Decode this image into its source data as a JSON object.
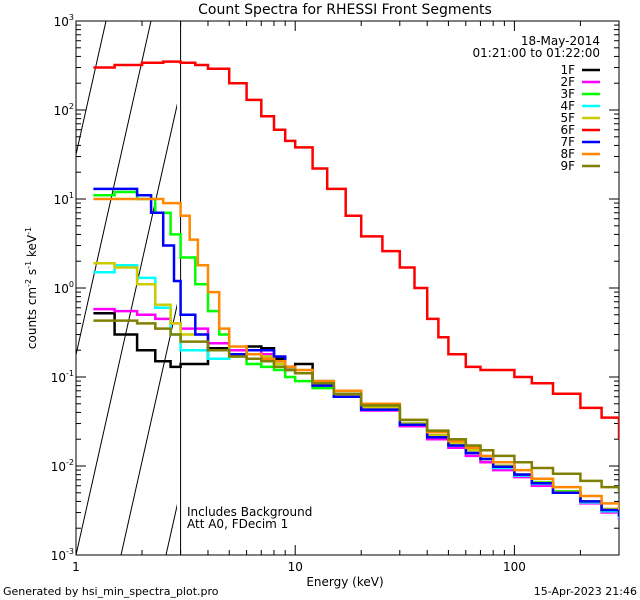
{
  "chart_data": {
    "type": "line",
    "title": "Count Spectra for RHESSI Front Segments",
    "xlabel": "Energy (keV)",
    "ylabel": "counts cm",
    "ylabel_parts": {
      "base": "counts cm",
      "sup1": "-2",
      "mid1": " s",
      "sup2": "-1",
      "mid2": " keV",
      "sup3": "-1"
    },
    "x_scale": "log",
    "y_scale": "log",
    "xlim": [
      1,
      300
    ],
    "ylim": [
      0.001,
      1000
    ],
    "x_ticks": [
      {
        "value": 1,
        "label": "1"
      },
      {
        "value": 10,
        "label": "10"
      },
      {
        "value": 100,
        "label": "100"
      }
    ],
    "y_ticks": [
      {
        "value": 0.001,
        "base": "10",
        "exp": "-3"
      },
      {
        "value": 0.01,
        "base": "10",
        "exp": "-2"
      },
      {
        "value": 0.1,
        "base": "10",
        "exp": "-1"
      },
      {
        "value": 1,
        "base": "10",
        "exp": "0"
      },
      {
        "value": 10,
        "base": "10",
        "exp": "1"
      },
      {
        "value": 100,
        "base": "10",
        "exp": "2"
      },
      {
        "value": 1000,
        "base": "10",
        "exp": "3"
      }
    ],
    "date": "18-May-2014",
    "time_range": "01:21:00 to 01:22:00",
    "threshold_keV": 3,
    "annotations": [
      "Includes Background",
      "Att A0, FDecim 1"
    ],
    "footer_left": "Generated by hsi_min_spectra_plot.pro",
    "footer_right": "15-Apr-2023 21:46",
    "series": [
      {
        "name": "1F",
        "color": "#000000",
        "x": [
          1.2,
          1.5,
          1.9,
          2.3,
          2.7,
          3,
          4,
          5,
          6,
          7,
          8,
          9,
          10,
          12,
          15,
          20,
          30,
          40,
          50,
          60,
          70,
          80,
          100,
          120,
          150,
          200,
          250,
          300
        ],
        "y": [
          0.52,
          0.3,
          0.2,
          0.15,
          0.13,
          0.14,
          0.21,
          0.2,
          0.22,
          0.21,
          0.16,
          0.13,
          0.14,
          0.09,
          0.065,
          0.045,
          0.03,
          0.022,
          0.018,
          0.015,
          0.012,
          0.01,
          0.008,
          0.0065,
          0.005,
          0.004,
          0.0032,
          0.0028
        ]
      },
      {
        "name": "2F",
        "color": "#ff00ff",
        "x": [
          1.2,
          1.5,
          1.9,
          2.3,
          2.7,
          3,
          4,
          5,
          6,
          7,
          8,
          9,
          10,
          12,
          15,
          20,
          30,
          40,
          50,
          60,
          70,
          80,
          100,
          120,
          150,
          200,
          250,
          300
        ],
        "y": [
          0.58,
          0.55,
          0.5,
          0.45,
          0.4,
          0.35,
          0.24,
          0.2,
          0.2,
          0.18,
          0.15,
          0.12,
          0.11,
          0.08,
          0.06,
          0.042,
          0.028,
          0.02,
          0.016,
          0.013,
          0.011,
          0.009,
          0.0075,
          0.006,
          0.005,
          0.0038,
          0.003,
          0.0025
        ]
      },
      {
        "name": "3F",
        "color": "#00ff00",
        "x": [
          1.2,
          1.5,
          1.9,
          2.3,
          2.7,
          3,
          3.5,
          4,
          4.5,
          5,
          6,
          7,
          8,
          9,
          10,
          12,
          15,
          20,
          30,
          40,
          50,
          60,
          70,
          80,
          100,
          120,
          150,
          200,
          250,
          300
        ],
        "y": [
          11,
          12,
          10,
          7,
          4,
          2.2,
          1.1,
          0.55,
          0.3,
          0.18,
          0.14,
          0.13,
          0.12,
          0.1,
          0.09,
          0.075,
          0.06,
          0.045,
          0.03,
          0.022,
          0.018,
          0.015,
          0.012,
          0.01,
          0.008,
          0.0066,
          0.0052,
          0.004,
          0.0032,
          0.0028
        ]
      },
      {
        "name": "4F",
        "color": "#00ffff",
        "x": [
          1.2,
          1.5,
          1.9,
          2.3,
          2.7,
          3,
          4,
          5,
          6,
          7,
          8,
          9,
          10,
          12,
          15,
          20,
          30,
          40,
          50,
          60,
          70,
          80,
          100,
          120,
          150,
          200,
          250,
          300
        ],
        "y": [
          1.5,
          1.8,
          1.3,
          0.6,
          0.3,
          0.2,
          0.16,
          0.17,
          0.18,
          0.17,
          0.14,
          0.12,
          0.11,
          0.08,
          0.06,
          0.043,
          0.03,
          0.021,
          0.017,
          0.014,
          0.012,
          0.0095,
          0.0078,
          0.0063,
          0.005,
          0.0039,
          0.0031,
          0.0026
        ]
      },
      {
        "name": "5F",
        "color": "#cccc00",
        "x": [
          1.2,
          1.5,
          1.9,
          2.3,
          2.7,
          3,
          4,
          5,
          6,
          7,
          8,
          9,
          10,
          12,
          15,
          20,
          30,
          40,
          50,
          60,
          70,
          80,
          100,
          120,
          150,
          200,
          250,
          300
        ],
        "y": [
          1.9,
          1.7,
          1.1,
          0.65,
          0.4,
          0.3,
          0.2,
          0.17,
          0.18,
          0.17,
          0.14,
          0.12,
          0.11,
          0.08,
          0.062,
          0.045,
          0.03,
          0.022,
          0.018,
          0.015,
          0.012,
          0.01,
          0.008,
          0.0065,
          0.0051,
          0.004,
          0.0033,
          0.0029
        ]
      },
      {
        "name": "6F",
        "color": "#ff0000",
        "x": [
          1.2,
          1.5,
          2,
          2.5,
          3,
          3.5,
          4,
          5,
          6,
          7,
          8,
          9,
          10,
          12,
          14,
          17,
          20,
          25,
          30,
          35,
          40,
          45,
          50,
          60,
          70,
          80,
          100,
          120,
          150,
          200,
          250,
          300
        ],
        "y": [
          300,
          320,
          340,
          350,
          340,
          320,
          290,
          200,
          130,
          85,
          60,
          45,
          38,
          22,
          13,
          6.5,
          3.8,
          2.6,
          1.7,
          1.0,
          0.45,
          0.28,
          0.18,
          0.13,
          0.12,
          0.12,
          0.1,
          0.085,
          0.065,
          0.045,
          0.035,
          0.02
        ]
      },
      {
        "name": "7F",
        "color": "#0000ff",
        "x": [
          1.2,
          1.5,
          1.9,
          2.2,
          2.5,
          2.8,
          3,
          3.5,
          4,
          5,
          6,
          7,
          8,
          9,
          10,
          12,
          15,
          20,
          30,
          40,
          50,
          60,
          70,
          80,
          100,
          120,
          150,
          200,
          250,
          300
        ],
        "y": [
          13,
          13,
          11,
          7,
          3,
          1.2,
          0.5,
          0.3,
          0.2,
          0.18,
          0.2,
          0.2,
          0.17,
          0.13,
          0.11,
          0.08,
          0.06,
          0.043,
          0.029,
          0.021,
          0.017,
          0.014,
          0.012,
          0.0098,
          0.008,
          0.0064,
          0.005,
          0.004,
          0.0032,
          0.0027
        ]
      },
      {
        "name": "8F",
        "color": "#ff8800",
        "x": [
          1.2,
          1.5,
          2,
          2.5,
          3,
          3.3,
          3.6,
          4,
          4.5,
          5,
          6,
          7,
          8,
          9,
          10,
          12,
          15,
          20,
          30,
          40,
          50,
          60,
          70,
          80,
          100,
          120,
          150,
          200,
          250,
          300
        ],
        "y": [
          10,
          10,
          10,
          9,
          6.5,
          3.5,
          1.8,
          0.9,
          0.35,
          0.22,
          0.18,
          0.16,
          0.15,
          0.13,
          0.12,
          0.09,
          0.07,
          0.05,
          0.033,
          0.024,
          0.019,
          0.016,
          0.013,
          0.011,
          0.009,
          0.0072,
          0.0058,
          0.0046,
          0.0038,
          0.0032
        ]
      },
      {
        "name": "9F",
        "color": "#808000",
        "x": [
          1.2,
          1.5,
          1.9,
          2.3,
          2.7,
          3,
          4,
          5,
          6,
          7,
          8,
          9,
          10,
          12,
          15,
          20,
          30,
          40,
          50,
          60,
          70,
          80,
          100,
          120,
          150,
          200,
          250,
          300
        ],
        "y": [
          0.43,
          0.43,
          0.4,
          0.35,
          0.3,
          0.25,
          0.2,
          0.17,
          0.16,
          0.15,
          0.13,
          0.12,
          0.11,
          0.085,
          0.065,
          0.048,
          0.033,
          0.025,
          0.02,
          0.017,
          0.015,
          0.013,
          0.011,
          0.0095,
          0.0082,
          0.0068,
          0.0058,
          0.005
        ]
      }
    ]
  }
}
